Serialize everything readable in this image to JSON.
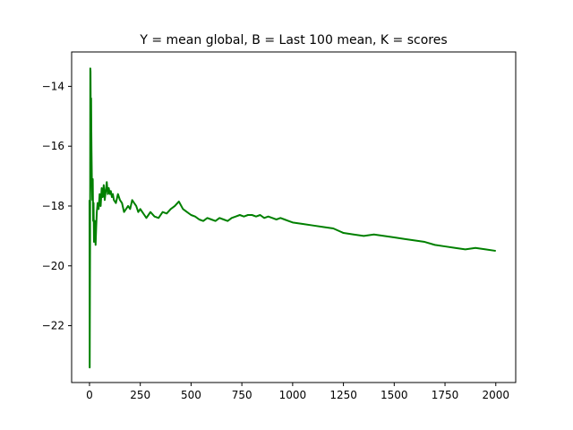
{
  "chart_data": {
    "type": "line",
    "title": "Y = mean global, B = Last 100 mean, K = scores",
    "xlabel": "",
    "ylabel": "",
    "xlim": [
      -88,
      2098
    ],
    "ylim": [
      -23.9,
      -12.85
    ],
    "xticks": [
      0,
      250,
      500,
      750,
      1000,
      1250,
      1500,
      1750,
      2000
    ],
    "yticks": [
      -22,
      -20,
      -18,
      -16,
      -14
    ],
    "xtick_labels": [
      "0",
      "250",
      "500",
      "750",
      "1000",
      "1250",
      "1500",
      "1750",
      "2000"
    ],
    "ytick_labels": [
      "−22",
      "−20",
      "−18",
      "−16",
      "−14"
    ],
    "grid": false,
    "series": [
      {
        "color": "#008000",
        "x": [
          0,
          1,
          2,
          3,
          4,
          5,
          6,
          7,
          8,
          9,
          10,
          12,
          14,
          16,
          18,
          20,
          22,
          24,
          26,
          28,
          30,
          33,
          36,
          40,
          45,
          50,
          55,
          60,
          65,
          70,
          75,
          80,
          85,
          90,
          95,
          100,
          105,
          110,
          115,
          120,
          130,
          140,
          150,
          160,
          170,
          180,
          190,
          200,
          210,
          220,
          230,
          240,
          250,
          260,
          270,
          280,
          290,
          300,
          320,
          340,
          360,
          380,
          400,
          420,
          440,
          460,
          480,
          500,
          520,
          540,
          560,
          580,
          600,
          620,
          640,
          660,
          680,
          700,
          720,
          740,
          760,
          780,
          800,
          820,
          840,
          860,
          880,
          900,
          920,
          940,
          960,
          980,
          1000,
          1050,
          1100,
          1150,
          1200,
          1250,
          1300,
          1350,
          1400,
          1450,
          1500,
          1550,
          1600,
          1650,
          1700,
          1750,
          1800,
          1850,
          1900,
          1950,
          2000
        ],
        "y": [
          -17.8,
          -23.4,
          -21.0,
          -19.0,
          -13.4,
          -13.5,
          -14.8,
          -16.5,
          -14.4,
          -15.5,
          -16.2,
          -17.3,
          -17.8,
          -17.1,
          -18.5,
          -17.9,
          -19.2,
          -19.1,
          -18.5,
          -19.0,
          -19.3,
          -18.7,
          -18.2,
          -17.9,
          -18.1,
          -17.6,
          -18.0,
          -17.4,
          -17.7,
          -17.3,
          -17.8,
          -17.5,
          -17.2,
          -17.6,
          -17.4,
          -17.6,
          -17.5,
          -17.7,
          -17.6,
          -17.8,
          -17.9,
          -17.6,
          -17.8,
          -17.9,
          -18.2,
          -18.1,
          -18.0,
          -18.1,
          -17.8,
          -17.9,
          -18.0,
          -18.2,
          -18.1,
          -18.2,
          -18.3,
          -18.4,
          -18.3,
          -18.2,
          -18.35,
          -18.4,
          -18.2,
          -18.25,
          -18.1,
          -18.0,
          -17.85,
          -18.1,
          -18.2,
          -18.3,
          -18.35,
          -18.45,
          -18.5,
          -18.4,
          -18.45,
          -18.5,
          -18.4,
          -18.45,
          -18.5,
          -18.4,
          -18.35,
          -18.3,
          -18.35,
          -18.3,
          -18.3,
          -18.35,
          -18.3,
          -18.4,
          -18.35,
          -18.4,
          -18.45,
          -18.4,
          -18.45,
          -18.5,
          -18.55,
          -18.6,
          -18.65,
          -18.7,
          -18.75,
          -18.9,
          -18.95,
          -19.0,
          -18.95,
          -19.0,
          -19.05,
          -19.1,
          -19.15,
          -19.2,
          -19.3,
          -19.35,
          -19.4,
          -19.45,
          -19.4,
          -19.45,
          -19.5
        ]
      }
    ]
  }
}
